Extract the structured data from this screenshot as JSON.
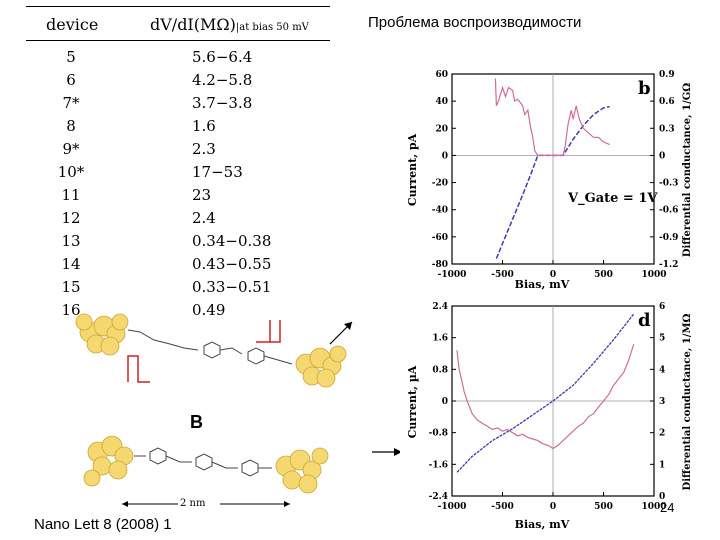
{
  "slide_title": "Проблема воспроизводимости",
  "table": {
    "header_device": "device",
    "header_value": "dV/dI(MΩ)",
    "header_sub": "|at bias 50 mV",
    "rows": [
      {
        "device": "5",
        "value": "5.6−6.4"
      },
      {
        "device": "6",
        "value": "4.2−5.8"
      },
      {
        "device": "7*",
        "value": "3.7−3.8"
      },
      {
        "device": "8",
        "value": "1.6"
      },
      {
        "device": "9*",
        "value": "2.3"
      },
      {
        "device": "10*",
        "value": "17−53"
      },
      {
        "device": "11",
        "value": "23"
      },
      {
        "device": "12",
        "value": "2.4"
      },
      {
        "device": "13",
        "value": "0.34−0.38"
      },
      {
        "device": "14",
        "value": "0.43−0.55"
      },
      {
        "device": "15",
        "value": "0.33−0.51"
      },
      {
        "device": "16",
        "value": "0.49"
      }
    ]
  },
  "label_B": "B",
  "scale_label": "2 nm",
  "footer": "Nano Lett 8 (2008) 1",
  "page_number": "24",
  "colors": {
    "current": "#3b3bb0",
    "conductance": "#d36a9a",
    "electrode": "#f5d870",
    "bracket": "#d22020"
  },
  "chart_data": [
    {
      "type": "line",
      "panel_label": "b",
      "annotation": "V_Gate = 1V",
      "xlabel": "Bias, mV",
      "ylabel": "Current, pA",
      "y2label": "Differential conductance, 1/GΩ",
      "xlim": [
        -1000,
        1000
      ],
      "ylim": [
        -80,
        60
      ],
      "y2lim": [
        -1.2,
        0.9
      ],
      "x_ticks": [
        "-1000",
        "-500",
        "0",
        "500",
        "1000"
      ],
      "y_ticks": [
        "60",
        "40",
        "20",
        "0",
        "-20",
        "-40",
        "-60",
        "-80"
      ],
      "y2_ticks": [
        "0.9",
        "0.6",
        "0.3",
        "0",
        "-0.3",
        "-0.6",
        "-0.9",
        "-1.2"
      ],
      "series": [
        {
          "axis": "left",
          "style": "dashed",
          "x": [
            -560,
            -500,
            -400,
            -300,
            -200,
            -150,
            -100,
            100,
            200,
            300,
            400,
            500,
            560
          ],
          "y": [
            -76,
            -65,
            -47,
            -29,
            -10,
            0,
            0,
            0,
            12,
            22,
            30,
            35,
            36
          ]
        },
        {
          "axis": "right",
          "x": [
            -570,
            -560,
            -540,
            -500,
            -470,
            -440,
            -400,
            -380,
            -350,
            -300,
            -280,
            -250,
            -220,
            -200,
            -180,
            -150,
            -100,
            100,
            120,
            150,
            180,
            200,
            230,
            260,
            300,
            350,
            400,
            450,
            500,
            560
          ],
          "y": [
            0.85,
            0.55,
            0.6,
            0.75,
            0.65,
            0.75,
            0.72,
            0.6,
            0.62,
            0.55,
            0.45,
            0.5,
            0.3,
            0.2,
            0.05,
            0.0,
            0.0,
            0.0,
            0.1,
            0.35,
            0.5,
            0.4,
            0.55,
            0.4,
            0.3,
            0.25,
            0.2,
            0.2,
            0.15,
            0.12
          ]
        }
      ]
    },
    {
      "type": "line",
      "panel_label": "d",
      "xlabel": "Bias, mV",
      "ylabel": "Current, µA",
      "y2label": "Differential conductance, 1/MΩ",
      "xlim": [
        -1000,
        1000
      ],
      "ylim": [
        -2.4,
        2.4
      ],
      "y2lim": [
        0,
        6
      ],
      "x_ticks": [
        "-1000",
        "-500",
        "0",
        "500",
        "1000"
      ],
      "y_ticks": [
        "2.4",
        "1.6",
        "0.8",
        "0",
        "-0.8",
        "-1.6",
        "-2.4"
      ],
      "y2_ticks": [
        "6",
        "5",
        "4",
        "3",
        "2",
        "1",
        "0"
      ],
      "series": [
        {
          "axis": "left",
          "x": [
            -950,
            -800,
            -600,
            -400,
            -200,
            0,
            200,
            400,
            600,
            800
          ],
          "y": [
            -1.8,
            -1.4,
            -1.0,
            -0.7,
            -0.35,
            0.0,
            0.4,
            0.95,
            1.55,
            2.2
          ]
        },
        {
          "axis": "right",
          "x": [
            -950,
            -930,
            -900,
            -880,
            -850,
            -800,
            -750,
            -700,
            -650,
            -600,
            -550,
            -500,
            -450,
            -400,
            -350,
            -300,
            -250,
            -200,
            -150,
            -100,
            -50,
            0,
            50,
            100,
            150,
            200,
            250,
            300,
            350,
            400,
            450,
            500,
            550,
            600,
            650,
            700,
            750,
            800
          ],
          "y": [
            4.6,
            4.0,
            3.6,
            3.3,
            3.0,
            2.6,
            2.4,
            2.3,
            2.2,
            2.1,
            2.15,
            2.05,
            2.1,
            2.0,
            1.9,
            1.95,
            1.85,
            1.8,
            1.75,
            1.65,
            1.6,
            1.5,
            1.6,
            1.75,
            1.9,
            2.05,
            2.2,
            2.3,
            2.5,
            2.6,
            2.8,
            3.0,
            3.2,
            3.5,
            3.7,
            3.9,
            4.3,
            4.8
          ]
        }
      ]
    }
  ]
}
